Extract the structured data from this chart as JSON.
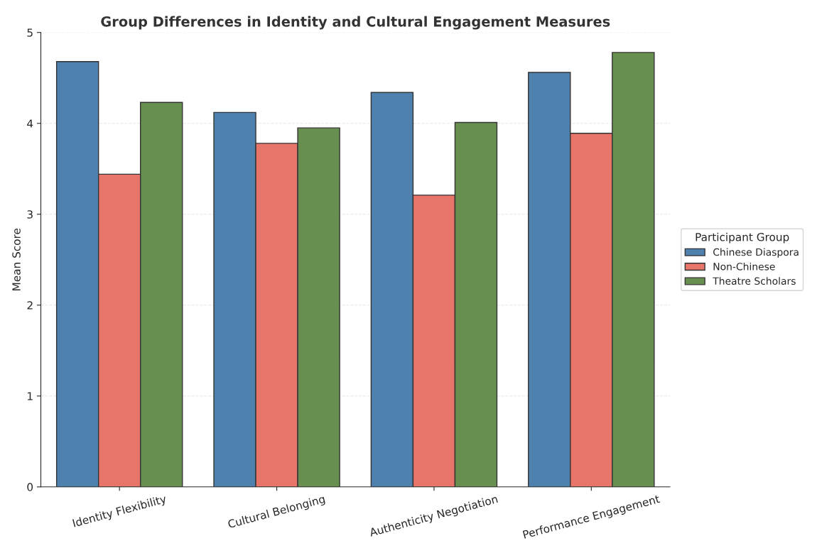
{
  "chart_data": {
    "type": "bar",
    "title": "Group Differences in Identity and Cultural Engagement Measures",
    "ylabel": "Mean Score",
    "categories": [
      "Identity Flexibility",
      "Cultural Belonging",
      "Authenticity Negotiation",
      "Performance Engagement"
    ],
    "series": [
      {
        "name": "Chinese Diaspora",
        "color": "#4f81af",
        "values": [
          4.68,
          4.12,
          4.34,
          4.56
        ]
      },
      {
        "name": "Non-Chinese",
        "color": "#e8756a",
        "values": [
          3.44,
          3.78,
          3.21,
          3.89
        ]
      },
      {
        "name": "Theatre Scholars",
        "color": "#678f4f",
        "values": [
          4.23,
          3.95,
          4.01,
          4.78
        ]
      }
    ],
    "legend_title": "Participant Group",
    "legend": "right",
    "ylim": [
      0,
      5
    ],
    "yticks": [
      0,
      1,
      2,
      3,
      4,
      5
    ],
    "grid": "y"
  }
}
